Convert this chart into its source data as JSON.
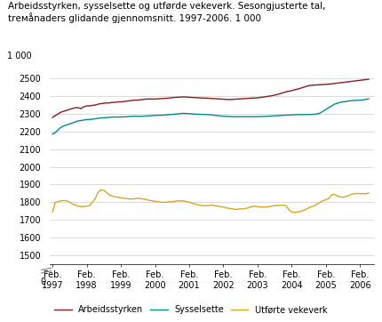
{
  "title": "Arbeidsstyrken, sysselsette og utførde vekeverk. Sesongjusterte tal,\ntrемånaders glidande gjennomsnitt. 1997-2006. 1 000",
  "ylabel_top": "1 000",
  "yticks": [
    1500,
    1600,
    1700,
    1800,
    1900,
    2000,
    2100,
    2200,
    2300,
    2400,
    2500
  ],
  "ylim": [
    1450,
    2580
  ],
  "xtick_labels": [
    "Feb.\n1997",
    "Feb.\n1998",
    "Feb.\n1999",
    "Feb.\n2000",
    "Feb.\n2001",
    "Feb.\n2002",
    "Feb.\n2003",
    "Feb.\n2004",
    "Feb.\n2005",
    "Feb.\n2006"
  ],
  "line_colors": [
    "#8B1A1A",
    "#008B8B",
    "#DAA520"
  ],
  "legend_labels": [
    "Arbeidsstyrken",
    "Sysselsette",
    "Utførte vekeverk"
  ],
  "background_color": "#ffffff",
  "grid_color": "#cccccc",
  "arbeidsstyrken": [
    2280,
    2290,
    2300,
    2310,
    2315,
    2320,
    2325,
    2330,
    2335,
    2335,
    2330,
    2340,
    2345,
    2345,
    2348,
    2350,
    2355,
    2358,
    2360,
    2362,
    2362,
    2365,
    2365,
    2368,
    2368,
    2370,
    2372,
    2374,
    2376,
    2378,
    2378,
    2380,
    2382,
    2384,
    2384,
    2384,
    2384,
    2385,
    2386,
    2387,
    2388,
    2390,
    2392,
    2393,
    2394,
    2395,
    2396,
    2395,
    2394,
    2393,
    2392,
    2391,
    2390,
    2390,
    2389,
    2388,
    2387,
    2386,
    2385,
    2384,
    2383,
    2382,
    2381,
    2382,
    2383,
    2384,
    2385,
    2386,
    2387,
    2388,
    2389,
    2390,
    2391,
    2393,
    2395,
    2397,
    2400,
    2403,
    2406,
    2410,
    2415,
    2420,
    2425,
    2428,
    2432,
    2436,
    2440,
    2445,
    2450,
    2455,
    2460,
    2462,
    2463,
    2464,
    2465,
    2466,
    2467,
    2468,
    2470,
    2472,
    2474,
    2476,
    2478,
    2480,
    2482,
    2484,
    2486,
    2488,
    2490,
    2492,
    2494,
    2496
  ],
  "sysselsette": [
    2185,
    2195,
    2210,
    2225,
    2232,
    2238,
    2243,
    2248,
    2255,
    2260,
    2262,
    2265,
    2268,
    2268,
    2270,
    2272,
    2275,
    2277,
    2278,
    2279,
    2280,
    2282,
    2282,
    2282,
    2282,
    2283,
    2284,
    2285,
    2286,
    2287,
    2286,
    2286,
    2287,
    2288,
    2289,
    2290,
    2291,
    2292,
    2292,
    2293,
    2294,
    2296,
    2297,
    2298,
    2300,
    2302,
    2303,
    2302,
    2301,
    2300,
    2299,
    2298,
    2297,
    2297,
    2296,
    2295,
    2294,
    2292,
    2290,
    2288,
    2287,
    2286,
    2285,
    2284,
    2284,
    2284,
    2284,
    2284,
    2284,
    2284,
    2284,
    2284,
    2284,
    2285,
    2285,
    2286,
    2287,
    2288,
    2289,
    2290,
    2291,
    2292,
    2293,
    2293,
    2294,
    2295,
    2296,
    2296,
    2296,
    2296,
    2296,
    2297,
    2298,
    2300,
    2305,
    2315,
    2325,
    2335,
    2345,
    2355,
    2360,
    2365,
    2368,
    2370,
    2373,
    2375,
    2376,
    2377,
    2378,
    2379,
    2382,
    2385
  ],
  "vekeverk": [
    1745,
    1798,
    1803,
    1808,
    1810,
    1808,
    1800,
    1790,
    1783,
    1778,
    1775,
    1775,
    1778,
    1780,
    1800,
    1820,
    1855,
    1870,
    1868,
    1855,
    1840,
    1835,
    1830,
    1828,
    1825,
    1822,
    1820,
    1818,
    1818,
    1820,
    1822,
    1820,
    1818,
    1815,
    1810,
    1808,
    1805,
    1803,
    1800,
    1800,
    1800,
    1803,
    1803,
    1805,
    1808,
    1808,
    1808,
    1803,
    1800,
    1795,
    1790,
    1785,
    1782,
    1780,
    1780,
    1782,
    1783,
    1780,
    1778,
    1775,
    1772,
    1768,
    1765,
    1763,
    1760,
    1760,
    1762,
    1762,
    1765,
    1770,
    1775,
    1778,
    1775,
    1773,
    1772,
    1773,
    1775,
    1778,
    1780,
    1782,
    1783,
    1782,
    1780,
    1758,
    1745,
    1742,
    1745,
    1748,
    1753,
    1760,
    1768,
    1775,
    1780,
    1790,
    1800,
    1808,
    1815,
    1820,
    1840,
    1845,
    1835,
    1830,
    1828,
    1832,
    1838,
    1845,
    1848,
    1850,
    1848,
    1848,
    1848,
    1852
  ]
}
